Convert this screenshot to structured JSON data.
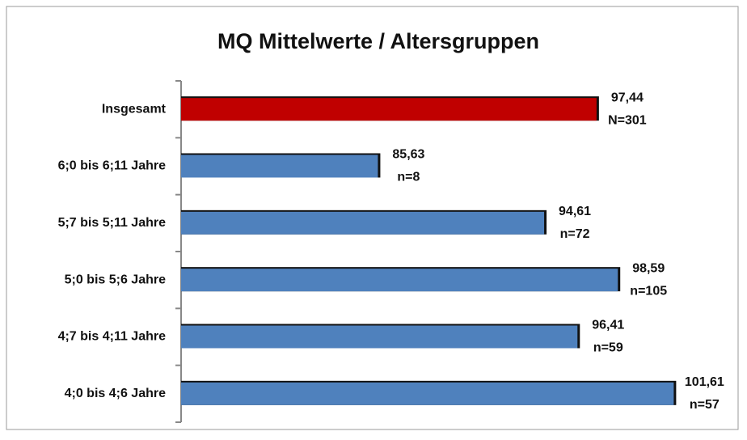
{
  "chart_data": {
    "type": "bar",
    "orientation": "horizontal",
    "title": "MQ  Mittelwerte / Altersgruppen",
    "categories": [
      "Insgesamt",
      "6;0 bis 6;11 Jahre",
      "5;7 bis 5;11 Jahre",
      "5;0 bis 5;6 Jahre",
      "4;7 bis 4;11 Jahre",
      "4;0 bis 4;6 Jahre"
    ],
    "values": [
      97.44,
      85.63,
      94.61,
      98.59,
      96.41,
      101.61
    ],
    "value_labels": [
      "97,44",
      "85,63",
      "94,61",
      "98,59",
      "96,41",
      "101,61"
    ],
    "n_labels": [
      "N=301",
      "n=8",
      "n=72",
      "n=105",
      "n=59",
      "n=57"
    ],
    "colors": [
      "#c00000",
      "#4f81bd",
      "#4f81bd",
      "#4f81bd",
      "#4f81bd",
      "#4f81bd"
    ],
    "xlim": [
      75,
      105
    ]
  }
}
